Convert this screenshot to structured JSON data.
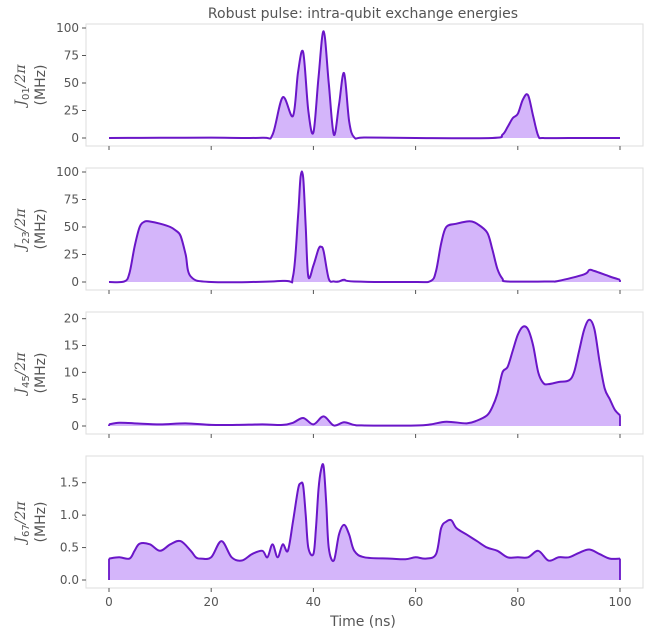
{
  "title": "Robust pulse: intra-qubit exchange energies",
  "colors": {
    "fill": "#d4b5fa",
    "line": "#6a16c8",
    "frame": "#dddddd",
    "text": "#555555"
  },
  "chart_data": [
    {
      "type": "area",
      "ylabel_math": "J01/2π",
      "ylabel_sym": "J",
      "ylabel_sub": "01",
      "ylabel_rest": "/2π",
      "ylabel_unit": "(MHz)",
      "xlim": [
        0,
        100
      ],
      "ylim": [
        0,
        100
      ],
      "yticks": [
        0,
        25,
        50,
        75,
        100
      ],
      "x": [
        0,
        10,
        20,
        30,
        32,
        34,
        36,
        37,
        38,
        39,
        40,
        41,
        42,
        43,
        44,
        45,
        46,
        47,
        48,
        50,
        60,
        75,
        77,
        78,
        79,
        80,
        81,
        82,
        83,
        84,
        85,
        90,
        100
      ],
      "values": [
        0,
        0.2,
        0.3,
        0.2,
        3,
        37,
        20,
        60,
        78,
        25,
        5,
        55,
        97,
        50,
        3,
        30,
        59,
        15,
        0.5,
        0.5,
        0,
        0,
        3,
        10,
        18,
        22,
        35,
        39,
        20,
        2,
        0,
        0,
        0
      ]
    },
    {
      "type": "area",
      "ylabel_math": "J23/2π",
      "ylabel_sym": "J",
      "ylabel_sub": "23",
      "ylabel_rest": "/2π",
      "ylabel_unit": "(MHz)",
      "xlim": [
        0,
        100
      ],
      "ylim": [
        0,
        100
      ],
      "yticks": [
        0,
        25,
        50,
        75,
        100
      ],
      "x": [
        0,
        3,
        4,
        5,
        6,
        7,
        8,
        10,
        12,
        13,
        14,
        15,
        16,
        20,
        34,
        36,
        37,
        37.5,
        38,
        38.5,
        39,
        40,
        41,
        41.5,
        42,
        43,
        44,
        45,
        46,
        48,
        60,
        63,
        64,
        65,
        66,
        68,
        70,
        71,
        72,
        74,
        75,
        76,
        77,
        78,
        86,
        88,
        93,
        94,
        95,
        98,
        100
      ],
      "values": [
        0,
        0.5,
        8,
        32,
        50,
        55,
        55,
        53,
        50,
        47,
        42,
        25,
        5,
        0,
        1,
        5,
        60,
        96,
        95,
        50,
        5,
        15,
        30,
        32,
        28,
        3,
        0.5,
        0.5,
        2,
        0.5,
        0,
        1,
        10,
        35,
        50,
        53,
        55,
        55,
        53,
        45,
        30,
        12,
        3,
        0.5,
        0.5,
        1,
        7,
        11,
        10,
        5,
        2
      ]
    },
    {
      "type": "area",
      "ylabel_math": "J45/2π",
      "ylabel_sym": "J",
      "ylabel_sub": "45",
      "ylabel_rest": "/2π",
      "ylabel_unit": "(MHz)",
      "xlim": [
        0,
        100
      ],
      "ylim": [
        0,
        20.5
      ],
      "yticks": [
        0,
        5,
        10,
        15,
        20
      ],
      "x": [
        0,
        2,
        5,
        10,
        15,
        20,
        25,
        30,
        34,
        36,
        38,
        40,
        42,
        44,
        46,
        48,
        50,
        60,
        63,
        66,
        70,
        72,
        74,
        75,
        76,
        77,
        78,
        79,
        80,
        81,
        82,
        83,
        84,
        85,
        86,
        88,
        90,
        91,
        92,
        93,
        94,
        95,
        96,
        97,
        98,
        99,
        100
      ],
      "values": [
        0.3,
        0.6,
        0.5,
        0.3,
        0.5,
        0.2,
        0.2,
        0.3,
        0.2,
        0.6,
        1.5,
        0.3,
        1.8,
        0.1,
        0.7,
        0.2,
        0.1,
        0.1,
        0.3,
        0.8,
        0.5,
        1.0,
        2.0,
        3.5,
        6.0,
        10.0,
        11.0,
        14.0,
        17.0,
        18.5,
        18.0,
        15.0,
        10.0,
        8.0,
        7.8,
        8.2,
        8.5,
        10.0,
        14.0,
        18.0,
        19.8,
        18.0,
        12.0,
        7.0,
        5.0,
        3.0,
        2.0
      ]
    },
    {
      "type": "area",
      "ylabel_math": "J67/2π",
      "ylabel_sym": "J",
      "ylabel_sub": "67",
      "ylabel_rest": "/2π",
      "ylabel_unit": "(MHz)",
      "xlim": [
        0,
        100
      ],
      "ylim": [
        0,
        1.85
      ],
      "yticks": [
        0,
        0.5,
        1.0,
        1.5
      ],
      "ytick_labels": [
        "0.0",
        "0.5",
        "1.0",
        "1.5"
      ],
      "xticks": [
        0,
        20,
        40,
        60,
        80,
        100
      ],
      "xlabel": "Time (ns)",
      "x": [
        0,
        2,
        4,
        5,
        6,
        8,
        10,
        12,
        14,
        16,
        17,
        18,
        20,
        22,
        24,
        26,
        28,
        30,
        31,
        32,
        33,
        34,
        35,
        36,
        37,
        37.5,
        38,
        38.5,
        39,
        40,
        40.5,
        41,
        41.5,
        42,
        42.5,
        43,
        44,
        45,
        46,
        47,
        48,
        50,
        55,
        58,
        60,
        62,
        64,
        65,
        66,
        67,
        68,
        70,
        72,
        74,
        76,
        78,
        80,
        82,
        84,
        86,
        88,
        90,
        92,
        94,
        96,
        98,
        100
      ],
      "values": [
        0.33,
        0.35,
        0.33,
        0.45,
        0.56,
        0.55,
        0.45,
        0.55,
        0.6,
        0.45,
        0.35,
        0.33,
        0.35,
        0.6,
        0.35,
        0.3,
        0.4,
        0.45,
        0.35,
        0.55,
        0.35,
        0.55,
        0.45,
        0.9,
        1.4,
        1.49,
        1.45,
        1.0,
        0.5,
        0.4,
        0.8,
        1.4,
        1.7,
        1.75,
        1.2,
        0.5,
        0.3,
        0.7,
        0.85,
        0.7,
        0.45,
        0.35,
        0.33,
        0.32,
        0.35,
        0.33,
        0.4,
        0.8,
        0.9,
        0.92,
        0.8,
        0.7,
        0.6,
        0.5,
        0.45,
        0.35,
        0.35,
        0.35,
        0.45,
        0.3,
        0.35,
        0.35,
        0.42,
        0.47,
        0.4,
        0.33,
        0.33
      ]
    }
  ]
}
